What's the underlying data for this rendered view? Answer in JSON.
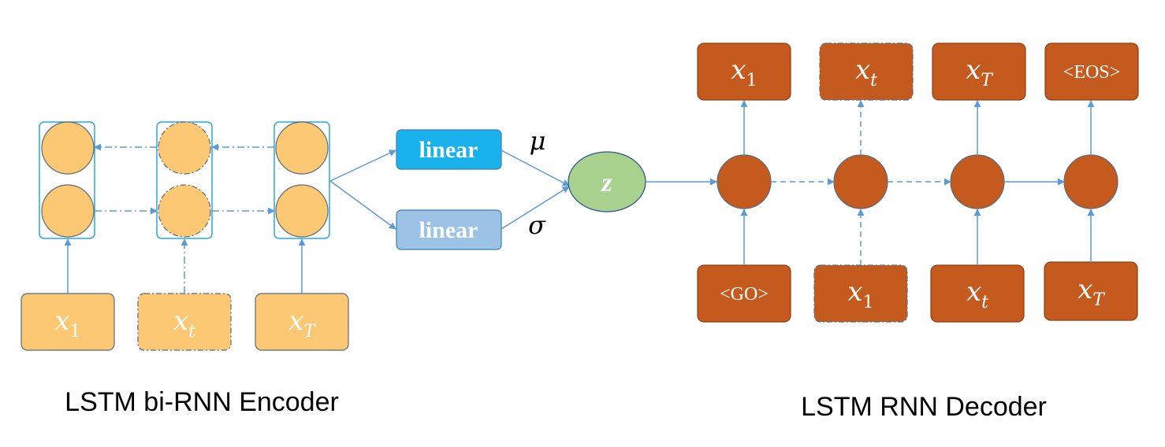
{
  "colors": {
    "encoder_fill": "#fcc874",
    "encoder_stroke": "#c9a15c",
    "decoder_fill": "#c55a1e",
    "decoder_stroke": "#8f3e12",
    "frame": "#29a8e0",
    "arrow": "#5b9bd5",
    "linear_mu": "#1ab2ec",
    "linear_sigma": "#9cc3e6",
    "z_fill": "#a9d18e"
  },
  "encoder": {
    "caption": "LSTM bi-RNN Encoder",
    "inputs": [
      {
        "var": "x",
        "sub": "1"
      },
      {
        "var": "x",
        "sub": "t"
      },
      {
        "var": "x",
        "sub": "T"
      }
    ]
  },
  "latent": {
    "linear_mu_label": "linear",
    "linear_sigma_label": "linear",
    "mu_symbol": "μ",
    "sigma_symbol": "σ",
    "z_label": "z"
  },
  "decoder": {
    "caption": "LSTM RNN Decoder",
    "inputs": [
      {
        "text": "<GO>"
      },
      {
        "var": "x",
        "sub": "1"
      },
      {
        "var": "x",
        "sub": "t"
      },
      {
        "var": "x",
        "sub": "T"
      }
    ],
    "outputs": [
      {
        "var": "x",
        "sub": "1"
      },
      {
        "var": "x",
        "sub": "t"
      },
      {
        "var": "x",
        "sub": "T"
      },
      {
        "text": "<EOS>"
      }
    ]
  }
}
